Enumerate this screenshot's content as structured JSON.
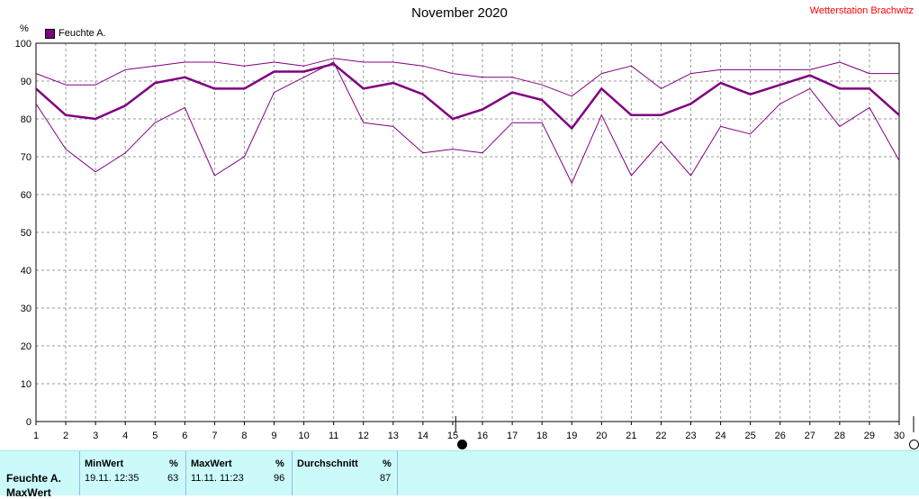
{
  "title": "November 2020",
  "station": "Wetterstation Brachwitz",
  "legend_label": "Feuchte A.",
  "unit": "%",
  "colors": {
    "series": "#800080",
    "grid": "#999999",
    "station": "#ff0000",
    "stats_bg": "#ccfafa"
  },
  "chart_data": {
    "type": "line",
    "title": "November 2020",
    "ylabel": "%",
    "x": [
      1,
      2,
      3,
      4,
      5,
      6,
      7,
      8,
      9,
      10,
      11,
      12,
      13,
      14,
      15,
      16,
      17,
      18,
      19,
      20,
      21,
      22,
      23,
      24,
      25,
      26,
      27,
      28,
      29,
      30
    ],
    "xlim": [
      1,
      30
    ],
    "ylim": [
      0,
      100
    ],
    "yticks": [
      0,
      10,
      20,
      30,
      40,
      50,
      60,
      70,
      80,
      90,
      100
    ],
    "grid": true,
    "series": [
      {
        "name": "Feuchte A.",
        "role": "average",
        "values": [
          88,
          81,
          80,
          83.5,
          89.5,
          91,
          88,
          88,
          92.5,
          92.5,
          94.5,
          88,
          89.5,
          86.5,
          80,
          82.5,
          87,
          85,
          77.5,
          88,
          81,
          81,
          84,
          89.5,
          86.5,
          89,
          91.5,
          88,
          88,
          81
        ]
      },
      {
        "role": "max",
        "values": [
          92,
          89,
          89,
          93,
          94,
          95,
          95,
          94,
          95,
          94,
          96,
          95,
          95,
          94,
          92,
          91,
          91,
          89,
          86,
          92,
          94,
          88,
          92,
          93,
          93,
          93,
          93,
          95,
          92,
          92
        ]
      },
      {
        "role": "min",
        "values": [
          84,
          72,
          66,
          71,
          79,
          83,
          65,
          70,
          87,
          91,
          95,
          79,
          78,
          71,
          72,
          71,
          79,
          79,
          63,
          81,
          65,
          74,
          65,
          78,
          76,
          84,
          88,
          78,
          83,
          69
        ]
      }
    ]
  },
  "stats": {
    "row_label": "Feuchte A.",
    "row_label_2": "MaxWert",
    "min": {
      "header": "MinWert",
      "unit": "%",
      "date": "19.11.  12:35",
      "value": "63"
    },
    "max": {
      "header": "MaxWert",
      "unit": "%",
      "date": "11.11.  11:23",
      "value": "96"
    },
    "avg": {
      "header": "Durchschnitt",
      "unit": "%",
      "value": "87"
    }
  }
}
